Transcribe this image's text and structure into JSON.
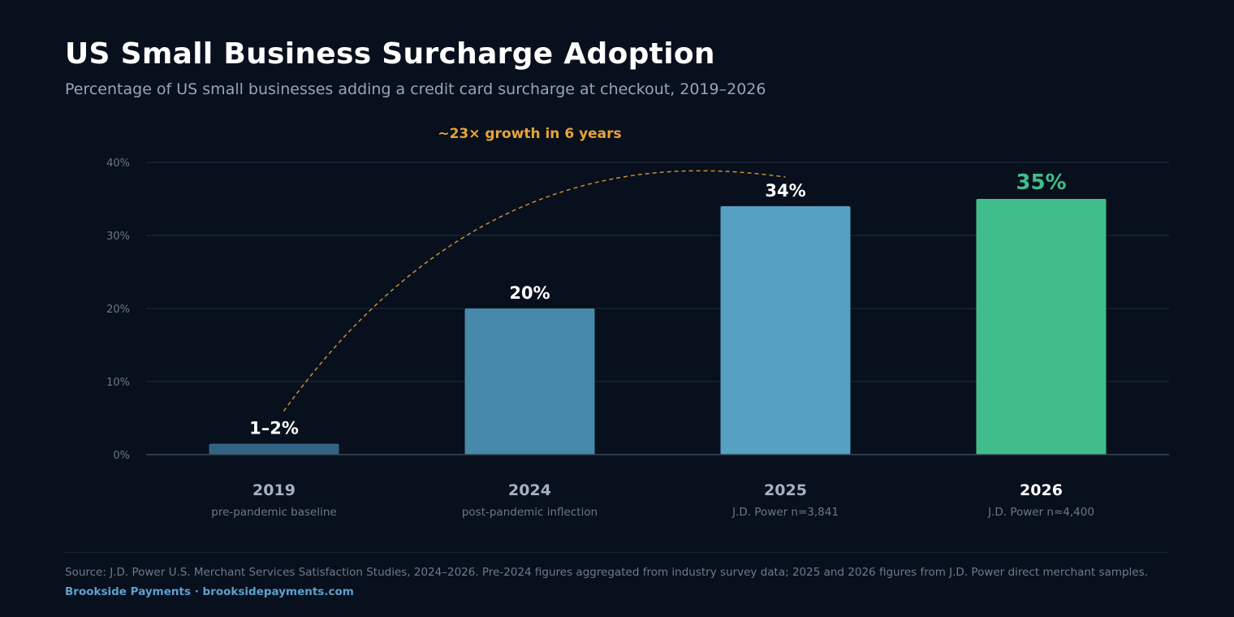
{
  "header": {
    "title": "US Small Business Surcharge Adoption",
    "subtitle": "Percentage of US small businesses adding a credit card surcharge at checkout, 2019–2026"
  },
  "chart_data": {
    "type": "bar",
    "categories": [
      "2019",
      "2024",
      "2025",
      "2026"
    ],
    "category_notes": [
      "pre-pandemic baseline",
      "post-pandemic inflection",
      "J.D. Power n=3,841",
      "J.D. Power n≈4,400"
    ],
    "values": [
      1.5,
      20,
      34,
      35
    ],
    "value_labels": [
      "1–2%",
      "20%",
      "34%",
      "35%"
    ],
    "bar_colors": [
      "#336384",
      "#4789aa",
      "#55a0c3",
      "#41bd8b"
    ],
    "highlight_index": 3,
    "ylim": [
      0,
      40
    ],
    "yticks": [
      0,
      10,
      20,
      30,
      40
    ],
    "ytick_labels": [
      "0%",
      "10%",
      "20%",
      "30%",
      "40%"
    ],
    "grid": true,
    "annotation": {
      "text": "~23× growth in 6 years",
      "from_category": "2019",
      "to_category": "2025",
      "color": "#e8a33a"
    }
  },
  "footer": {
    "source": "Source: J.D. Power U.S. Merchant Services Satisfaction Studies, 2024–2026. Pre-2024 figures aggregated from industry survey data; 2025 and 2026 figures from J.D. Power direct merchant samples.",
    "brand": "Brookside Payments · brooksidepayments.com"
  },
  "colors": {
    "background": "#07101c",
    "grid": "#182333",
    "axis_text": "#6b7888",
    "value_label": "#ffffff",
    "highlight": "#41bd8b"
  }
}
